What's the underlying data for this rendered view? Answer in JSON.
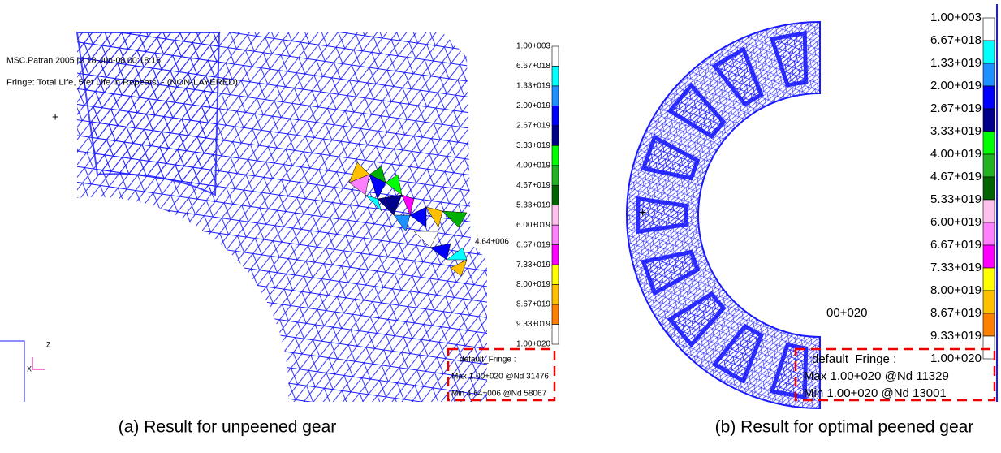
{
  "panel_a": {
    "header": [
      "MSC.Patran 2005 r2 18-Jun-08 00:18:16",
      "Fringe: Total Life, 5fet Life in Repeats, - (NON-LAYERED)"
    ],
    "annotation": "4.64+006",
    "triad": [
      "Z",
      "X"
    ],
    "legend": {
      "labels": [
        "1.00+003",
        "6.67+018",
        "1.33+019",
        "2.00+019",
        "2.67+019",
        "3.33+019",
        "4.00+019",
        "4.67+019",
        "5.33+019",
        "6.00+019",
        "6.67+019",
        "7.33+019",
        "8.00+019",
        "8.67+019",
        "9.33+019",
        "1.00+020"
      ],
      "colors": [
        "#ffffff",
        "#00ffff",
        "#1e90ff",
        "#0000ff",
        "#00008b",
        "#00ff00",
        "#22b222",
        "#006400",
        "#ffc0ee",
        "#ff80ff",
        "#ff00ff",
        "#ffff00",
        "#ffc000",
        "#ff8000",
        "#ffffff"
      ]
    },
    "fringe_box": {
      "title": "default_Fringe :",
      "max": "Max 1.00+020 @Nd 31476",
      "min": "Min 4.64+006 @Nd 58067"
    },
    "caption": "(a) Result for unpeened gear"
  },
  "panel_b": {
    "annotation": "00+020",
    "legend": {
      "labels": [
        "1.00+003",
        "6.67+018",
        "1.33+019",
        "2.00+019",
        "2.67+019",
        "3.33+019",
        "4.00+019",
        "4.67+019",
        "5.33+019",
        "6.00+019",
        "6.67+019",
        "7.33+019",
        "8.00+019",
        "8.67+019",
        "9.33+019",
        "1.00+020"
      ],
      "colors": [
        "#ffffff",
        "#00ffff",
        "#1e90ff",
        "#0000ff",
        "#00008b",
        "#00ff00",
        "#22b222",
        "#006400",
        "#ffc0ee",
        "#ff80ff",
        "#ff00ff",
        "#ffff00",
        "#ffc000",
        "#ff8000",
        "#ffffff"
      ]
    },
    "fringe_box": {
      "title": "default_Fringe :",
      "max": "Max 1.00+020 @Nd 11329",
      "min": "Min 1.00+020 @Nd 13001"
    },
    "caption": "(b) Result for optimal peened gear"
  }
}
